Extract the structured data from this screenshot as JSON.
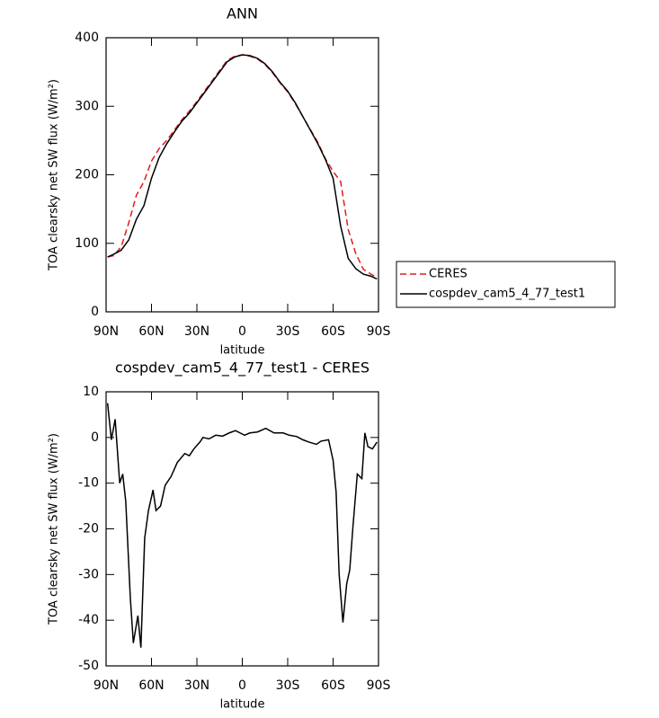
{
  "chart_data": [
    {
      "type": "line",
      "title": "ANN",
      "xlabel": "latitude",
      "ylabel": "TOA clearsky net SW flux (W/m²)",
      "x": [
        89,
        85,
        80,
        75,
        70,
        65,
        60,
        55,
        50,
        45,
        40,
        35,
        30,
        25,
        20,
        15,
        10,
        5,
        0,
        -5,
        -10,
        -15,
        -20,
        -25,
        -30,
        -35,
        -40,
        -45,
        -50,
        -55,
        -60,
        -65,
        -70,
        -75,
        -80,
        -85,
        -89
      ],
      "series": [
        {
          "name": "CERES",
          "color": "#e41a1c",
          "style": "dashed",
          "values": [
            80,
            82,
            95,
            130,
            170,
            190,
            220,
            238,
            250,
            265,
            280,
            293,
            307,
            322,
            337,
            352,
            367,
            373,
            375,
            373,
            369,
            361,
            349,
            334,
            321,
            304,
            285,
            266,
            247,
            223,
            205,
            190,
            120,
            85,
            62,
            55,
            50
          ]
        },
        {
          "name": "cospdev_cam5_4_77_test1",
          "color": "#000000",
          "style": "solid",
          "values": [
            80,
            84,
            90,
            105,
            135,
            155,
            195,
            225,
            245,
            262,
            278,
            290,
            305,
            320,
            335,
            350,
            365,
            372,
            375,
            374,
            370,
            362,
            350,
            335,
            322,
            305,
            285,
            265,
            245,
            222,
            195,
            125,
            78,
            63,
            55,
            52,
            48
          ]
        }
      ],
      "xlim": [
        90,
        -90
      ],
      "xticks": [
        {
          "value": 90,
          "label": "90N"
        },
        {
          "value": 60,
          "label": "60N"
        },
        {
          "value": 30,
          "label": "30N"
        },
        0,
        {
          "value": -30,
          "label": "30S"
        },
        {
          "value": -60,
          "label": "60S"
        },
        {
          "value": -90,
          "label": "90S"
        }
      ],
      "ylim": [
        0,
        400
      ],
      "yticks": [
        0,
        100,
        200,
        300,
        400
      ],
      "legend": "outside-right"
    },
    {
      "type": "line",
      "title": "cospdev_cam5_4_77_test1 - CERES",
      "xlabel": "latitude",
      "ylabel": "TOA clearsky net SW flux (W/m²)",
      "x": [
        89,
        86.5,
        84,
        81,
        79,
        77,
        74,
        72,
        69,
        67,
        64.5,
        62,
        59,
        57,
        54,
        51,
        47,
        43,
        38,
        35,
        32,
        28,
        26,
        22,
        17.5,
        13,
        8.6,
        4.5,
        1.5,
        -1.5,
        -5,
        -10,
        -15.5,
        -21,
        -27,
        -31,
        -36,
        -40,
        -44,
        -49,
        -52,
        -57,
        -60,
        -62,
        -64,
        -66.5,
        -69,
        -71,
        -73,
        -76,
        -79,
        -81,
        -83,
        -86,
        -89
      ],
      "series": [
        {
          "name": "cospdev_cam5_4_77_test1 - CERES",
          "color": "#000000",
          "style": "solid",
          "values": [
            7.5,
            -0.5,
            4,
            -10,
            -8,
            -14,
            -35,
            -45,
            -39,
            -46,
            -22,
            -16,
            -11.5,
            -16,
            -15,
            -10.5,
            -8.5,
            -5.5,
            -3.5,
            -4,
            -2.5,
            -1,
            0,
            -0.3,
            0.5,
            0.3,
            1,
            1.5,
            1,
            0.5,
            1,
            1.2,
            2,
            1,
            1,
            0.5,
            0.2,
            -0.5,
            -1,
            -1.5,
            -0.8,
            -0.5,
            -5,
            -12,
            -30,
            -40.5,
            -32,
            -29,
            -20,
            -8,
            -9,
            1,
            -2,
            -2.5,
            -1
          ]
        }
      ],
      "xlim": [
        90,
        -90
      ],
      "xticks": [
        {
          "value": 90,
          "label": "90N"
        },
        {
          "value": 60,
          "label": "60N"
        },
        {
          "value": 30,
          "label": "30N"
        },
        0,
        {
          "value": -30,
          "label": "30S"
        },
        {
          "value": -60,
          "label": "60S"
        },
        {
          "value": -90,
          "label": "90S"
        }
      ],
      "ylim": [
        -50,
        10
      ],
      "yticks": [
        -50,
        -40,
        -30,
        -20,
        -10,
        0,
        10
      ]
    }
  ]
}
